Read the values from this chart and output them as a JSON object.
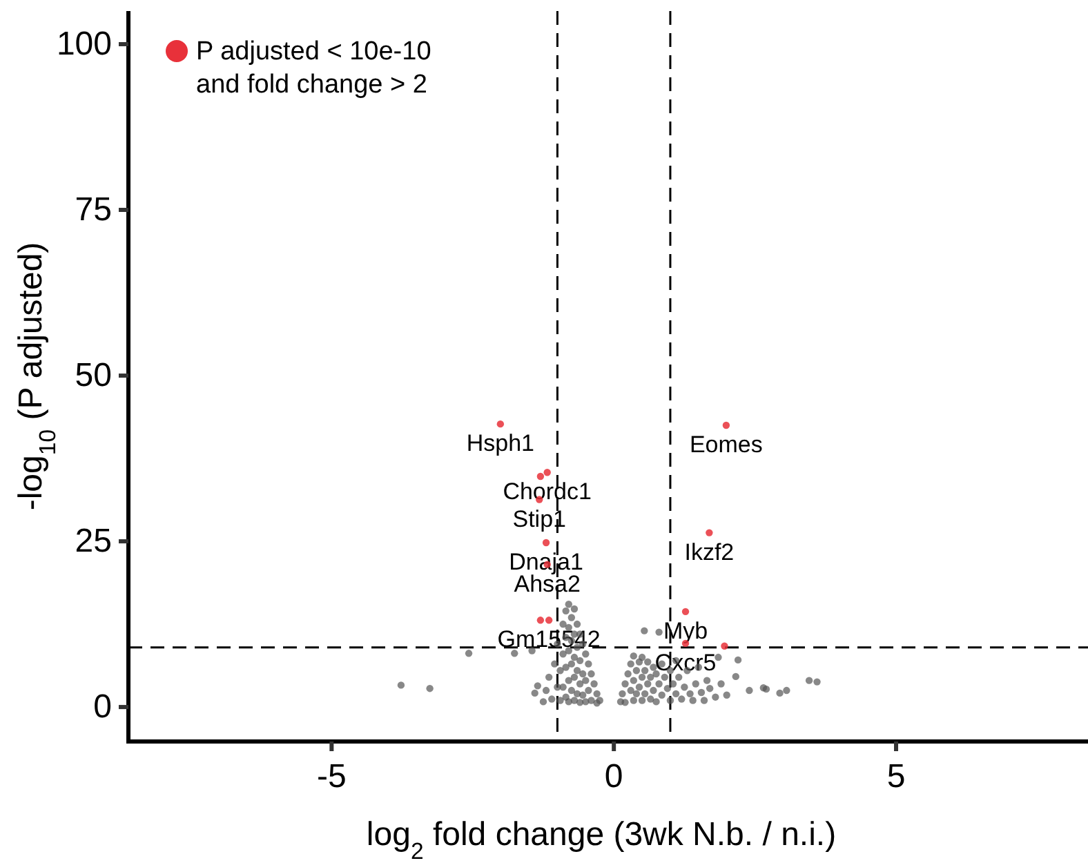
{
  "chart_data": {
    "type": "scatter",
    "xlabel": "log$_{2}$ fold change (3wk N.b. / n.i.)",
    "ylabel": "-log$_{10}$ (P adjusted)",
    "xlim": [
      -8.6,
      8.4
    ],
    "ylim": [
      -5.2,
      105
    ],
    "xticks": [
      -5,
      0,
      5
    ],
    "yticks": [
      0,
      25,
      50,
      75,
      100
    ],
    "grid": false,
    "legend": "top left",
    "marker": "circle",
    "ref_lines": [
      {
        "axis": "x",
        "value": -1,
        "line_style": "dashed",
        "color": "#000000"
      },
      {
        "axis": "x",
        "value": 1,
        "line_style": "dashed",
        "color": "#000000"
      },
      {
        "axis": "y",
        "value": 9,
        "line_style": "dashed",
        "color": "#000000"
      }
    ],
    "series": [
      {
        "color": "#555555",
        "x": [
          -3.77,
          -3.26,
          -2.57,
          -1.76,
          -1.45,
          -1.35,
          -1.4,
          -1.25,
          -1.2,
          -1.15,
          -1.1,
          -1.05,
          -1.0,
          -1.0,
          -0.95,
          -0.95,
          -0.9,
          -0.9,
          -0.9,
          -0.85,
          -0.85,
          -0.85,
          -0.85,
          -0.8,
          -0.8,
          -0.8,
          -0.8,
          -0.8,
          -0.75,
          -0.75,
          -0.75,
          -0.75,
          -0.7,
          -0.7,
          -0.7,
          -0.7,
          -0.7,
          -0.65,
          -0.65,
          -0.65,
          -0.65,
          -0.6,
          -0.6,
          -0.6,
          -0.6,
          -0.55,
          -0.55,
          -0.55,
          -0.5,
          -0.5,
          -0.5,
          -0.45,
          -0.45,
          -0.4,
          -0.4,
          -0.35,
          -0.3,
          -0.3,
          -0.25,
          0.12,
          0.15,
          0.2,
          0.2,
          0.25,
          0.3,
          0.3,
          0.35,
          0.35,
          0.35,
          0.4,
          0.4,
          0.45,
          0.45,
          0.5,
          0.5,
          0.5,
          0.54,
          0.55,
          0.55,
          0.6,
          0.6,
          0.65,
          0.65,
          0.7,
          0.7,
          0.75,
          0.75,
          0.8,
          0.8,
          0.85,
          0.85,
          0.9,
          0.95,
          1.0,
          1.0,
          1.05,
          1.1,
          1.1,
          1.15,
          1.2,
          1.25,
          1.3,
          1.35,
          1.4,
          1.45,
          1.5,
          1.55,
          1.6,
          1.65,
          1.7,
          1.8,
          1.85,
          1.9,
          2.0,
          2.16,
          2.2,
          2.4,
          2.65,
          2.7,
          2.94,
          3.06,
          3.46,
          3.6
        ],
        "values": [
          3.3,
          2.8,
          8.1,
          8.1,
          8.5,
          3.2,
          2.1,
          0.8,
          2.5,
          4.5,
          1.2,
          6.5,
          3,
          9.5,
          1,
          5.5,
          12.5,
          8,
          3,
          14.5,
          10.5,
          6,
          1.5,
          15.5,
          12,
          8.5,
          4,
          0.8,
          13.5,
          10,
          6.5,
          2.5,
          14.8,
          11,
          7.5,
          4.5,
          1,
          12.5,
          9,
          5.5,
          2,
          11,
          7,
          3.5,
          0.7,
          9.5,
          5,
          1.8,
          8,
          4,
          0.8,
          6.5,
          2.5,
          5,
          1,
          3.5,
          2,
          0.6,
          1,
          0.8,
          2,
          3.5,
          0.7,
          5,
          6.5,
          2.5,
          7.7,
          4,
          1,
          5.5,
          2,
          6.8,
          3,
          7.5,
          4.5,
          1,
          11.5,
          5.5,
          2,
          6.8,
          3.5,
          4.5,
          1.2,
          6,
          2.5,
          5,
          0.8,
          11.3,
          3.5,
          6.5,
          1.8,
          4.5,
          2.8,
          5.5,
          1,
          3.5,
          7,
          2,
          4.5,
          1.2,
          3,
          5.5,
          2,
          1,
          3.5,
          6,
          2.2,
          1,
          4,
          2.8,
          1.5,
          7.5,
          3.5,
          1.8,
          4.6,
          7.1,
          2.5,
          2.9,
          2.7,
          2.1,
          2.5,
          4.0,
          3.8
        ]
      },
      {
        "name": "P adjusted < 10e-10 and fold change > 2",
        "color": "#e8313a",
        "x": [
          -2.01,
          1.99,
          -1.3,
          -1.18,
          -1.32,
          -1.2,
          -1.18,
          -1.3,
          -1.15,
          1.69,
          1.27,
          1.27,
          1.96
        ],
        "values": [
          42.7,
          42.5,
          34.8,
          35.4,
          31.3,
          24.8,
          21.5,
          13.1,
          13.1,
          26.3,
          14.4,
          9.6,
          9.2
        ]
      }
    ],
    "annotations": [
      {
        "text": "Hsph1",
        "x": -2.01,
        "y": 42.7
      },
      {
        "text": "Eomes",
        "x": 1.99,
        "y": 42.5
      },
      {
        "text": "Chordc1",
        "x": -1.18,
        "y": 35.4
      },
      {
        "text": "Stip1",
        "x": -1.32,
        "y": 31.3
      },
      {
        "text": "Dnaja1",
        "x": -1.2,
        "y": 24.8
      },
      {
        "text": "Ahsa2",
        "x": -1.18,
        "y": 21.5
      },
      {
        "text": "Gm15542",
        "x": -1.15,
        "y": 13.1
      },
      {
        "text": "Ikzf2",
        "x": 1.69,
        "y": 26.3
      },
      {
        "text": "Myb",
        "x": 1.27,
        "y": 14.4
      },
      {
        "text": "Cxcr5",
        "x": 1.27,
        "y": 9.6
      }
    ]
  }
}
